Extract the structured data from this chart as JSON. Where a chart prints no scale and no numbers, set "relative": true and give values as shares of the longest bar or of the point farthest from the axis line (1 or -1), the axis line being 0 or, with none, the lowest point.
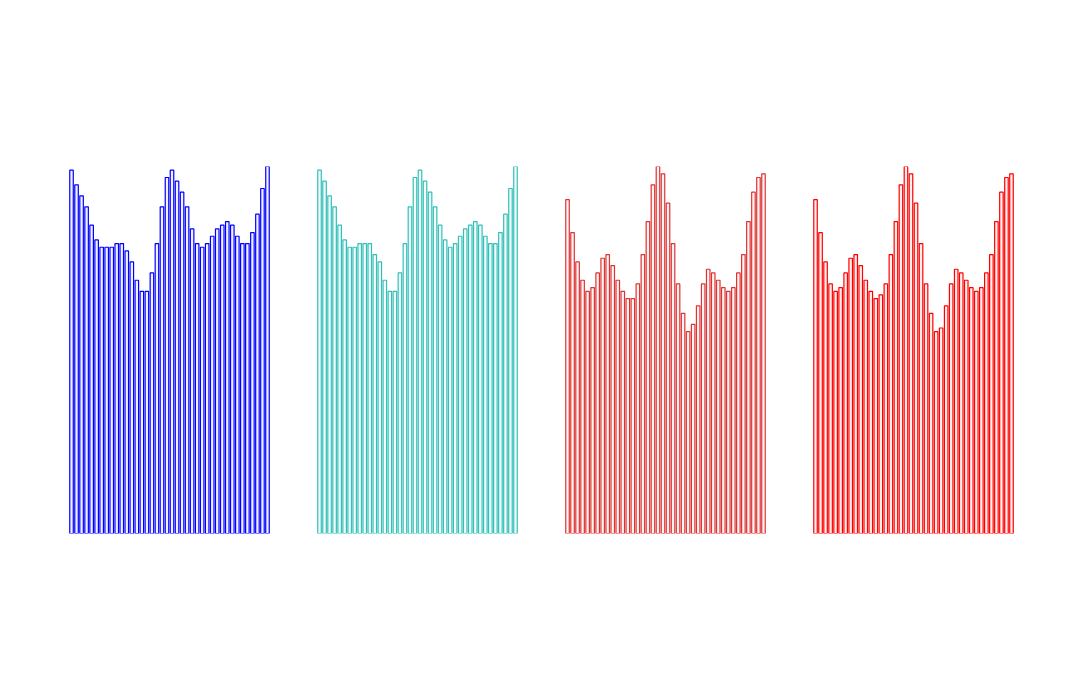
{
  "chart_data": [
    {
      "type": "bar",
      "relative": true,
      "color": "#0000ff",
      "categories": [
        null,
        null,
        null,
        null,
        null,
        null,
        null,
        null,
        null,
        null,
        null,
        null,
        null,
        null,
        null,
        null,
        null,
        null,
        null,
        null,
        null,
        null,
        null,
        null,
        null,
        null,
        null,
        null,
        null,
        null,
        null,
        null,
        null,
        null,
        null,
        null,
        null,
        null,
        null,
        null
      ],
      "values": [
        0.99,
        0.95,
        0.92,
        0.89,
        0.84,
        0.8,
        0.78,
        0.78,
        0.78,
        0.79,
        0.79,
        0.77,
        0.74,
        0.69,
        0.66,
        0.66,
        0.71,
        0.79,
        0.89,
        0.97,
        0.99,
        0.96,
        0.93,
        0.89,
        0.83,
        0.79,
        0.78,
        0.79,
        0.81,
        0.83,
        0.84,
        0.85,
        0.84,
        0.81,
        0.79,
        0.79,
        0.82,
        0.87,
        0.94,
        1.0
      ]
    },
    {
      "type": "bar",
      "relative": true,
      "color": "#33c0b8",
      "categories": [
        null,
        null,
        null,
        null,
        null,
        null,
        null,
        null,
        null,
        null,
        null,
        null,
        null,
        null,
        null,
        null,
        null,
        null,
        null,
        null,
        null,
        null,
        null,
        null,
        null,
        null,
        null,
        null,
        null,
        null,
        null,
        null,
        null,
        null,
        null,
        null,
        null,
        null,
        null,
        null
      ],
      "values": [
        0.99,
        0.96,
        0.92,
        0.89,
        0.84,
        0.8,
        0.78,
        0.78,
        0.79,
        0.79,
        0.79,
        0.76,
        0.74,
        0.69,
        0.66,
        0.66,
        0.71,
        0.79,
        0.89,
        0.97,
        0.99,
        0.96,
        0.93,
        0.89,
        0.84,
        0.8,
        0.78,
        0.79,
        0.81,
        0.83,
        0.84,
        0.85,
        0.84,
        0.81,
        0.79,
        0.79,
        0.82,
        0.87,
        0.94,
        1.0
      ]
    },
    {
      "type": "bar",
      "relative": true,
      "color": "#dd3333",
      "categories": [
        null,
        null,
        null,
        null,
        null,
        null,
        null,
        null,
        null,
        null,
        null,
        null,
        null,
        null,
        null,
        null,
        null,
        null,
        null,
        null,
        null,
        null,
        null,
        null,
        null,
        null,
        null,
        null,
        null,
        null,
        null,
        null,
        null,
        null,
        null,
        null,
        null,
        null,
        null,
        null
      ],
      "values": [
        0.91,
        0.82,
        0.74,
        0.69,
        0.66,
        0.67,
        0.71,
        0.75,
        0.76,
        0.73,
        0.69,
        0.66,
        0.64,
        0.64,
        0.68,
        0.76,
        0.85,
        0.95,
        1.0,
        0.98,
        0.9,
        0.79,
        0.68,
        0.6,
        0.55,
        0.57,
        0.62,
        0.68,
        0.72,
        0.71,
        0.69,
        0.67,
        0.66,
        0.67,
        0.71,
        0.76,
        0.85,
        0.93,
        0.97,
        0.98
      ]
    },
    {
      "type": "bar",
      "relative": true,
      "color": "#ff0000",
      "categories": [
        null,
        null,
        null,
        null,
        null,
        null,
        null,
        null,
        null,
        null,
        null,
        null,
        null,
        null,
        null,
        null,
        null,
        null,
        null,
        null,
        null,
        null,
        null,
        null,
        null,
        null,
        null,
        null,
        null,
        null,
        null,
        null,
        null,
        null,
        null,
        null,
        null,
        null,
        null,
        null
      ],
      "values": [
        0.91,
        0.82,
        0.74,
        0.68,
        0.66,
        0.67,
        0.71,
        0.75,
        0.76,
        0.73,
        0.69,
        0.66,
        0.64,
        0.65,
        0.68,
        0.76,
        0.85,
        0.95,
        1.0,
        0.98,
        0.9,
        0.79,
        0.68,
        0.6,
        0.55,
        0.56,
        0.62,
        0.68,
        0.72,
        0.71,
        0.69,
        0.67,
        0.66,
        0.67,
        0.71,
        0.76,
        0.85,
        0.93,
        0.97,
        0.98
      ]
    }
  ]
}
